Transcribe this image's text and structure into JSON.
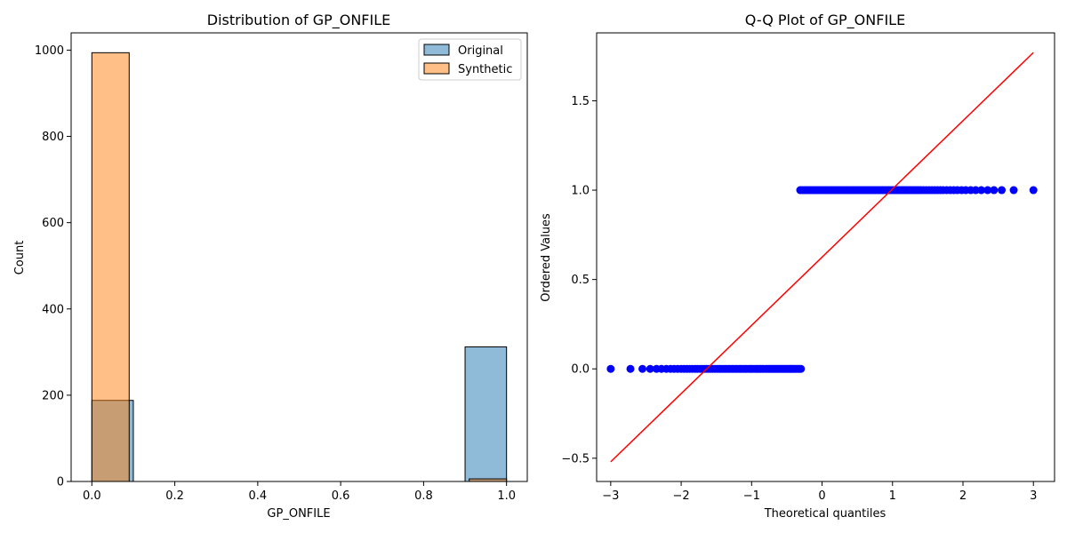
{
  "chart_data": [
    {
      "type": "bar",
      "title": "Distribution of GP_ONFILE",
      "xlabel": "GP_ONFILE",
      "ylabel": "Count",
      "xlim": [
        -0.05,
        1.05
      ],
      "ylim": [
        0,
        1040
      ],
      "xticks": [
        0.0,
        0.2,
        0.4,
        0.6,
        0.8,
        1.0
      ],
      "xtick_labels": [
        "0.0",
        "0.2",
        "0.4",
        "0.6",
        "0.8",
        "1.0"
      ],
      "yticks": [
        0,
        200,
        400,
        600,
        800,
        1000
      ],
      "ytick_labels": [
        "0",
        "200",
        "400",
        "600",
        "800",
        "1000"
      ],
      "grid": false,
      "legend_position": "upper right",
      "series": [
        {
          "name": "Original",
          "color": "#1f77b4",
          "bins": [
            {
              "x0": 0.0,
              "x1": 0.1,
              "count": 188
            },
            {
              "x0": 0.9,
              "x1": 1.0,
              "count": 312
            }
          ]
        },
        {
          "name": "Synthetic",
          "color": "#ff7f0e",
          "bins": [
            {
              "x0": 0.0,
              "x1": 0.09,
              "count": 994
            },
            {
              "x0": 0.91,
              "x1": 1.0,
              "count": 6
            }
          ]
        }
      ]
    },
    {
      "type": "scatter",
      "title": "Q-Q Plot of GP_ONFILE",
      "xlabel": "Theoretical quantiles",
      "ylabel": "Ordered Values",
      "xlim": [
        -3.2,
        3.3
      ],
      "ylim": [
        -0.63,
        1.88
      ],
      "xticks": [
        -3,
        -2,
        -1,
        0,
        1,
        2,
        3
      ],
      "xtick_labels": [
        "−3",
        "−2",
        "−1",
        "0",
        "1",
        "2",
        "3"
      ],
      "yticks": [
        -0.5,
        0.0,
        0.5,
        1.0,
        1.5
      ],
      "ytick_labels": [
        "−0.5",
        "0.0",
        "0.5",
        "1.0",
        "1.5"
      ],
      "grid": false,
      "point_color": "#0000ff",
      "line_color": "#ff0000",
      "points": [
        {
          "y": 0,
          "x": [
            -3.0,
            -2.72,
            -2.55,
            -2.44,
            -2.35,
            -2.28,
            -2.21,
            -2.15,
            -2.1,
            -2.05,
            -2.0,
            -1.96,
            -1.92,
            -1.88,
            -1.84,
            -1.8,
            -1.77,
            -1.73,
            -1.7,
            -1.67,
            -1.64,
            -1.61,
            -1.58,
            -1.55,
            -1.52,
            -1.49,
            -1.46,
            -1.44,
            -1.41,
            -1.38,
            -1.36,
            -1.33,
            -1.31,
            -1.28,
            -1.26,
            -1.23,
            -1.21,
            -1.18,
            -1.16,
            -1.14,
            -1.11,
            -1.09,
            -1.07,
            -1.04,
            -1.02,
            -1.0,
            -0.98,
            -0.95,
            -0.93,
            -0.91,
            -0.89,
            -0.87,
            -0.85,
            -0.83,
            -0.8,
            -0.78,
            -0.76,
            -0.74,
            -0.72,
            -0.7,
            -0.68,
            -0.66,
            -0.64,
            -0.62,
            -0.6,
            -0.58,
            -0.56,
            -0.54,
            -0.52,
            -0.5,
            -0.48,
            -0.46,
            -0.44,
            -0.42,
            -0.4,
            -0.38,
            -0.36,
            -0.34,
            -0.32,
            -0.3
          ]
        },
        {
          "y": 1,
          "x": [
            -0.31,
            -0.28,
            -0.25,
            -0.22,
            -0.19,
            -0.16,
            -0.13,
            -0.1,
            -0.07,
            -0.04,
            -0.01,
            0.02,
            0.05,
            0.08,
            0.11,
            0.14,
            0.17,
            0.2,
            0.23,
            0.26,
            0.29,
            0.32,
            0.35,
            0.38,
            0.41,
            0.44,
            0.47,
            0.5,
            0.53,
            0.56,
            0.59,
            0.62,
            0.65,
            0.68,
            0.71,
            0.74,
            0.77,
            0.8,
            0.83,
            0.86,
            0.89,
            0.92,
            0.95,
            0.98,
            1.01,
            1.04,
            1.07,
            1.1,
            1.13,
            1.16,
            1.19,
            1.22,
            1.25,
            1.28,
            1.31,
            1.34,
            1.37,
            1.4,
            1.44,
            1.48,
            1.52,
            1.56,
            1.6,
            1.64,
            1.68,
            1.72,
            1.77,
            1.82,
            1.87,
            1.92,
            1.98,
            2.04,
            2.11,
            2.18,
            2.26,
            2.35,
            2.44,
            2.55,
            2.72,
            3.0
          ]
        }
      ],
      "fit_line": {
        "x": [
          -3.0,
          3.0
        ],
        "y": [
          -0.52,
          1.77
        ]
      }
    }
  ]
}
